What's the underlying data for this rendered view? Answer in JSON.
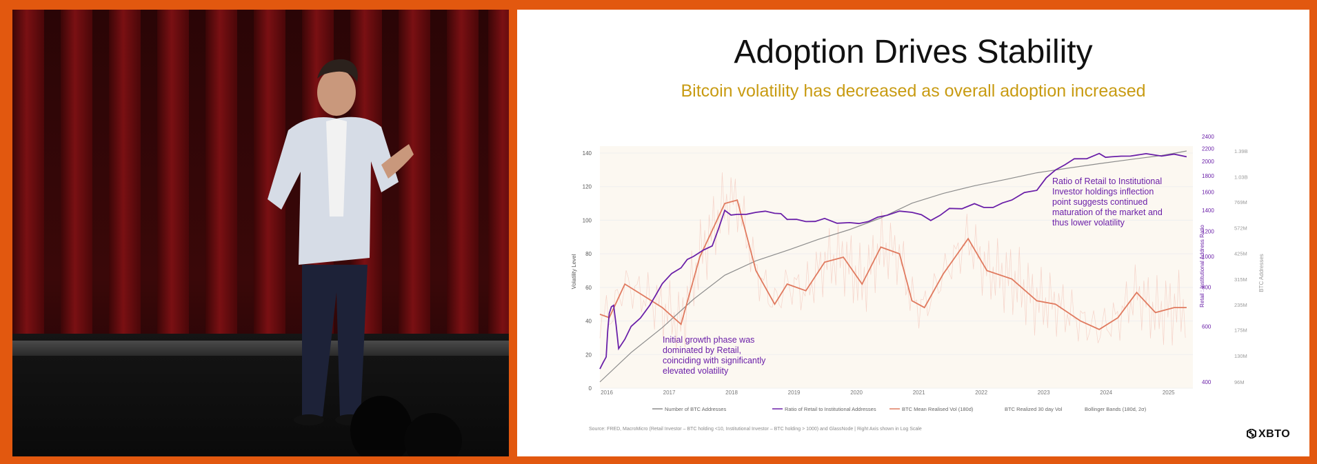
{
  "slide": {
    "title": "Adoption Drives Stability",
    "subtitle": "Bitcoin volatility has decreased as overall adoption increased",
    "source": "Source: FRED, MacroMicro (Retail Investor – BTC holding <10, Institutional Investor – BTC holding > 1000) and GlassNode | Right Axis shown in Log Scale",
    "brand": "XBTO",
    "brand_icon": "xbto-logo-icon",
    "annotation_left": [
      "Initial growth phase was",
      "dominated by Retail,",
      "coinciding with significantly",
      "elevated volatility"
    ],
    "annotation_right": [
      "Ratio of Retail to Institutional",
      "Investor holdings inflection",
      "point suggests continued",
      "maturation of the market and",
      "thus lower volatility"
    ]
  },
  "colors": {
    "background": "#e2580f",
    "title": "#111111",
    "subtitle": "#c89b12",
    "annotation": "#6a1fa8",
    "addresses": "#8c8c8c",
    "ratio": "#6a1fa8",
    "mean_vol": "#e07a5f",
    "realized_vol": "#f0b4a8",
    "bands": "#f7ecd6"
  },
  "chart_data": {
    "type": "line",
    "xlim": [
      2016,
      2025.5
    ],
    "x_ticks": [
      "2016",
      "2017",
      "2018",
      "2019",
      "2020",
      "2021",
      "2022",
      "2023",
      "2024",
      "2025"
    ],
    "ylabel": "Volatility Level",
    "ylim": [
      0,
      140
    ],
    "y_ticks": [
      "0",
      "20",
      "40",
      "60",
      "80",
      "100",
      "120",
      "140"
    ],
    "y2label": "Retail : Institutional Address Ratio",
    "y2_ticks": [
      "400",
      "600",
      "800",
      "1000",
      "1200",
      "1400",
      "1600",
      "1800",
      "2000",
      "2200",
      "2400"
    ],
    "y3label": "BTC Addresses",
    "y3_ticks": [
      "96M",
      "130M",
      "175M",
      "235M",
      "315M",
      "425M",
      "572M",
      "769M",
      "1.03B",
      "1.39B"
    ],
    "legend": [
      "Number of BTC Addresses",
      "Ratio of Retail to Institutional Addresses",
      "BTC Mean Realised Vol (180d)",
      "BTC Realized 30 day Vol",
      "Bollinger Bands (180d, 2σ)"
    ],
    "series": [
      {
        "name": "Number of BTC Addresses",
        "x": [
          2016,
          2016.5,
          2017,
          2017.5,
          2018,
          2018.5,
          2019,
          2019.5,
          2020,
          2020.5,
          2021,
          2021.5,
          2022,
          2022.5,
          2023,
          2023.5,
          2024,
          2024.5,
          2025,
          2025.4
        ],
        "y": [
          96,
          135,
          180,
          250,
          330,
          390,
          440,
          500,
          560,
          640,
          760,
          850,
          930,
          1000,
          1080,
          1140,
          1200,
          1260,
          1320,
          1390
        ]
      },
      {
        "name": "Ratio of Retail to Institutional Addresses",
        "x": [
          2016,
          2016.1,
          2016.15,
          2016.22,
          2016.3,
          2016.5,
          2016.8,
          2017,
          2017.3,
          2017.5,
          2017.8,
          2018,
          2018.2,
          2018.5,
          2018.8,
          2019,
          2019.3,
          2019.6,
          2020,
          2020.3,
          2020.6,
          2021,
          2021.3,
          2021.6,
          2022,
          2022.3,
          2022.6,
          2023,
          2023.3,
          2023.6,
          2024,
          2024.2,
          2024.5,
          2025,
          2025.4
        ],
        "y": [
          440,
          480,
          660,
          700,
          510,
          600,
          700,
          820,
          920,
          1000,
          1080,
          1400,
          1360,
          1380,
          1370,
          1310,
          1290,
          1320,
          1280,
          1290,
          1350,
          1380,
          1300,
          1420,
          1470,
          1430,
          1510,
          1620,
          1880,
          2040,
          2120,
          2070,
          2080,
          2080,
          2070
        ]
      },
      {
        "name": "BTC Mean Realised Vol (180d)",
        "x": [
          2016,
          2016.15,
          2016.4,
          2016.7,
          2017,
          2017.3,
          2017.6,
          2018,
          2018.2,
          2018.5,
          2018.8,
          2019,
          2019.3,
          2019.6,
          2019.9,
          2020.2,
          2020.5,
          2020.8,
          2021,
          2021.2,
          2021.5,
          2021.9,
          2022.2,
          2022.6,
          2023,
          2023.3,
          2023.7,
          2024,
          2024.3,
          2024.6,
          2024.9,
          2025.2,
          2025.4
        ],
        "y": [
          44,
          42,
          62,
          55,
          48,
          38,
          78,
          110,
          112,
          70,
          50,
          62,
          58,
          75,
          78,
          62,
          84,
          80,
          52,
          48,
          68,
          89,
          70,
          65,
          52,
          50,
          40,
          35,
          42,
          57,
          45,
          48,
          48
        ]
      }
    ]
  }
}
